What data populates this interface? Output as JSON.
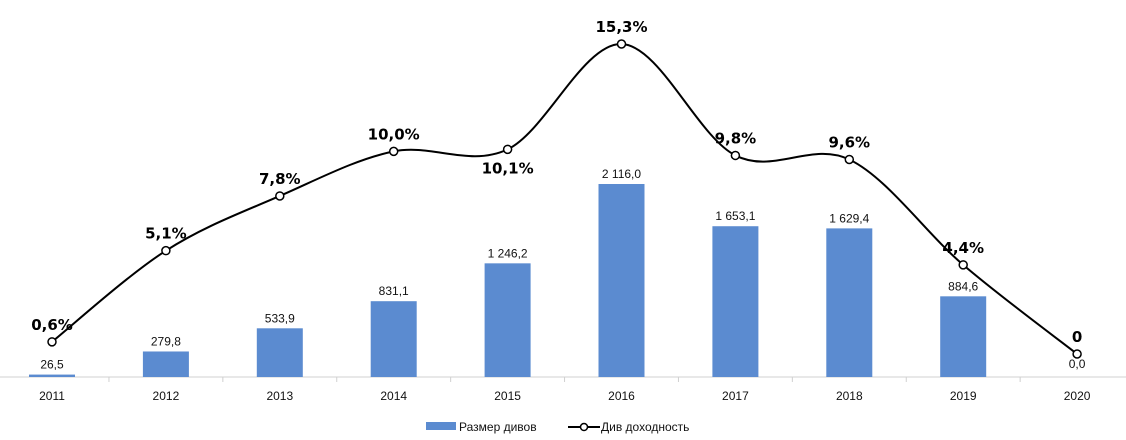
{
  "chart_data": {
    "type": "bar",
    "categories": [
      "2011",
      "2012",
      "2013",
      "2014",
      "2015",
      "2016",
      "2017",
      "2018",
      "2019",
      "2020"
    ],
    "series": [
      {
        "name": "Размер дивов",
        "kind": "bar",
        "color": "#5B8BD0",
        "values": [
          26.5,
          279.8,
          533.9,
          831.1,
          1246.2,
          2116.0,
          1653.1,
          1629.4,
          884.6,
          0.0
        ],
        "labels": [
          "26,5",
          "279,8",
          "533,9",
          "831,1",
          "1 246,2",
          "2 116,0",
          "1 653,1",
          "1 629,4",
          "884,6",
          "0,0"
        ]
      },
      {
        "name": "Див доходность",
        "kind": "line",
        "color": "#000000",
        "values": [
          0.6,
          5.1,
          7.8,
          10.0,
          10.1,
          15.3,
          9.8,
          9.6,
          4.4,
          0
        ],
        "labels": [
          "0,6%",
          "5,1%",
          "7,8%",
          "10,0%",
          "10,1%",
          "15,3%",
          "9,8%",
          "9,6%",
          "4,4%",
          "0"
        ]
      }
    ],
    "ylim_bars": [
      0,
      2116.0
    ],
    "ylim_line": [
      0,
      15.3
    ],
    "legend_position": "bottom-center",
    "grid": false
  }
}
